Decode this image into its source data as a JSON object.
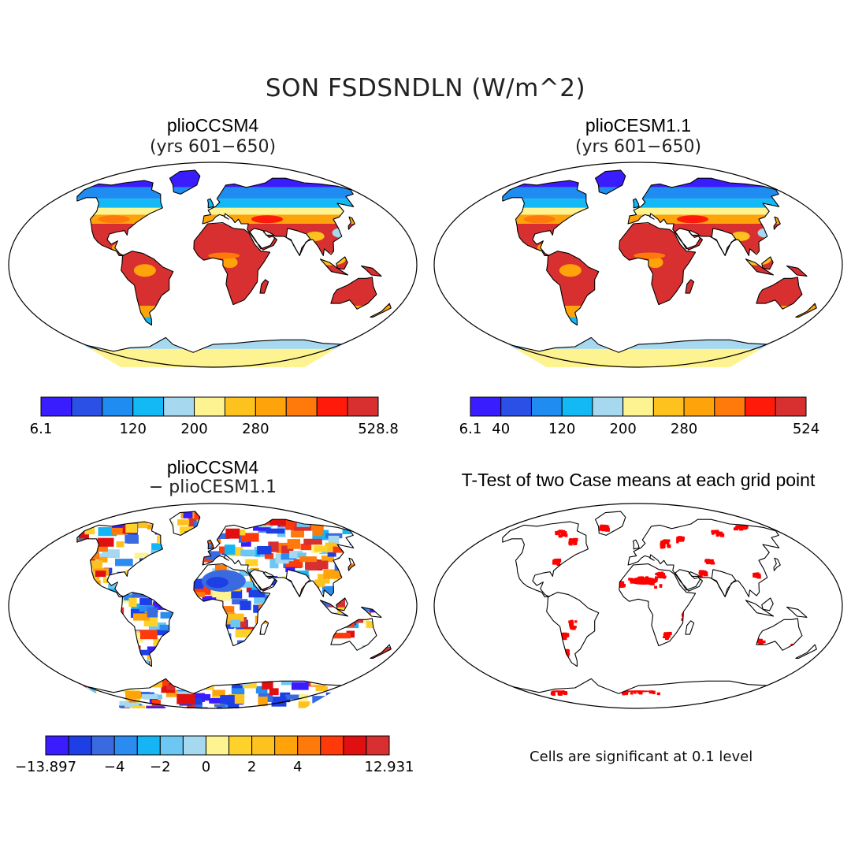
{
  "figure": {
    "title": "SON FSDSNDLN (W/m^2)"
  },
  "panels": [
    {
      "id": "tl",
      "title": "plioCCSM4",
      "subtitle": "(yrs 601−650)",
      "style": "mean"
    },
    {
      "id": "tr",
      "title": "plioCESM1.1",
      "subtitle": "(yrs 601−650)",
      "style": "mean"
    },
    {
      "id": "bl",
      "title": "plioCCSM4",
      "subtitle": "− plioCESM1.1",
      "style": "diff"
    },
    {
      "id": "br",
      "title": "T-Test of two Case means at each grid point",
      "subtitle": "",
      "style": "ttest",
      "note": "Cells are significant at 0.1 level"
    }
  ],
  "colorbars": [
    {
      "id": "cb1",
      "colors": [
        "#3a1dff",
        "#2b50e6",
        "#1e8cf0",
        "#12b9f5",
        "#a6d8f0",
        "#fef391",
        "#fec21e",
        "#fea30a",
        "#ff7a0a",
        "#ff1a0a",
        "#d83030"
      ],
      "labels": [
        "6.1",
        "120",
        "200",
        "280",
        "528.8"
      ],
      "label_positions": [
        0,
        3,
        5,
        7,
        11
      ]
    },
    {
      "id": "cb2",
      "colors": [
        "#3a1dff",
        "#2b50e6",
        "#1e8cf0",
        "#12b9f5",
        "#a6d8f0",
        "#fef391",
        "#fec21e",
        "#fea30a",
        "#ff7a0a",
        "#ff1a0a",
        "#d83030"
      ],
      "labels": [
        "6.1",
        "40",
        "120",
        "200",
        "280",
        "524"
      ],
      "label_positions": [
        0,
        1,
        3,
        5,
        7,
        11
      ]
    },
    {
      "id": "cb3",
      "colors": [
        "#3a1dff",
        "#1e3ee6",
        "#3a6ae0",
        "#2a8cf0",
        "#14b4f5",
        "#6cc8f2",
        "#a6d8f0",
        "#fef391",
        "#fed22a",
        "#fec21e",
        "#fea30a",
        "#ff7a0a",
        "#ff3a0a",
        "#e01010",
        "#d83030"
      ],
      "labels": [
        "−13.897",
        "−4",
        "−2",
        "0",
        "2",
        "4",
        "12.931"
      ],
      "label_positions": [
        0,
        3,
        5,
        7,
        9,
        11,
        15
      ]
    }
  ],
  "map_colors": {
    "polar": "#3a1dff",
    "subarctic": "#1e8cf0",
    "boreal": "#12b9f5",
    "temperate": "#fef391",
    "subtropic": "#fea30a",
    "desert": "#d83030",
    "antarctic_light": "#a6d8f0",
    "antarctic_mid": "#fef391",
    "sig_red": "#ff0000",
    "coast": "#000000",
    "ocean": "#ffffff"
  },
  "legend_placement": "below-each-panel"
}
